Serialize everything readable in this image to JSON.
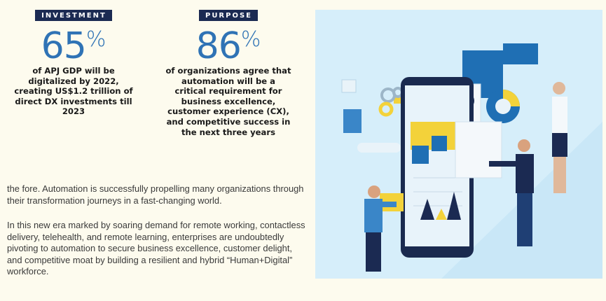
{
  "stats": [
    {
      "badge": "INVESTMENT",
      "value": "65",
      "unit": "%",
      "description": "of APJ GDP will be digitalized by 2022, creating US$1.2 trillion of direct DX investments till 2023"
    },
    {
      "badge": "PURPOSE",
      "value": "86",
      "unit": "%",
      "description": "of organizations agree that automation will be a critical requirement for business excellence, customer experience (CX), and competitive success in the next three years"
    }
  ],
  "body": {
    "paragraph1": "the fore. Automation is successfully propelling many organizations through their transformation journeys in a fast-changing world.",
    "paragraph2": "In this new era marked by soaring demand for remote working, contactless delivery, telehealth, and remote learning, enterprises are undoubtedly pivoting to automation to secure business excellence, customer delight, and competitive moat by building a resilient and hybrid “Human+Digital” workforce."
  },
  "colors": {
    "background": "#fdfbee",
    "badge_bg": "#1b2a52",
    "stat_blue": "#2f73b5",
    "panel_blue": "#c7e6f7",
    "accent_yellow": "#f3d23a",
    "accent_blue": "#1f6fb4"
  }
}
